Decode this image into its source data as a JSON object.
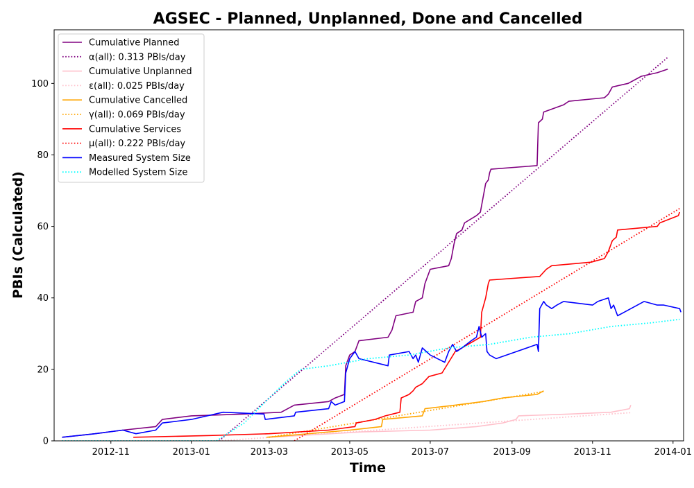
{
  "chart_data": {
    "type": "line",
    "title": "AGSEC - Planned, Unplanned, Done  and Cancelled",
    "xlabel": "Time",
    "ylabel": "PBIs (Calculated)",
    "x_axis": {
      "type": "date",
      "range": [
        "2012-09-19",
        "2014-01-09"
      ],
      "ticks": [
        "2012-11-01",
        "2013-01-01",
        "2013-03-01",
        "2013-05-01",
        "2013-07-01",
        "2013-09-01",
        "2013-11-01",
        "2014-01-01"
      ],
      "tick_labels": [
        "2012-11",
        "2013-01",
        "2013-03",
        "2013-05",
        "2013-07",
        "2013-09",
        "2013-11",
        "2014-01"
      ]
    },
    "y_axis": {
      "range": [
        0,
        115
      ],
      "ticks": [
        0,
        20,
        40,
        60,
        80,
        100
      ],
      "tick_labels": [
        "0",
        "20",
        "40",
        "60",
        "80",
        "100"
      ]
    },
    "grid": false,
    "legend_position": "upper left",
    "series": [
      {
        "name": "Cumulative Planned",
        "color": "#800080",
        "style": "solid",
        "points": [
          [
            "2012-09-25",
            1
          ],
          [
            "2012-10-20",
            2
          ],
          [
            "2012-11-10",
            3
          ],
          [
            "2012-12-05",
            4
          ],
          [
            "2012-12-10",
            6
          ],
          [
            "2013-01-01",
            7
          ],
          [
            "2013-02-10",
            7.5
          ],
          [
            "2013-03-10",
            8
          ],
          [
            "2013-03-20",
            10
          ],
          [
            "2013-04-15",
            11
          ],
          [
            "2013-04-20",
            12
          ],
          [
            "2013-04-27",
            13
          ],
          [
            "2013-04-28",
            21
          ],
          [
            "2013-05-01",
            24
          ],
          [
            "2013-05-05",
            25
          ],
          [
            "2013-05-08",
            28
          ],
          [
            "2013-05-30",
            29
          ],
          [
            "2013-06-02",
            31
          ],
          [
            "2013-06-05",
            35
          ],
          [
            "2013-06-18",
            36
          ],
          [
            "2013-06-20",
            39
          ],
          [
            "2013-06-25",
            40
          ],
          [
            "2013-06-27",
            44
          ],
          [
            "2013-07-01",
            48
          ],
          [
            "2013-07-15",
            49
          ],
          [
            "2013-07-17",
            51
          ],
          [
            "2013-07-19",
            55
          ],
          [
            "2013-07-21",
            58
          ],
          [
            "2013-07-25",
            59
          ],
          [
            "2013-07-27",
            61
          ],
          [
            "2013-08-05",
            63
          ],
          [
            "2013-08-08",
            64
          ],
          [
            "2013-08-12",
            72
          ],
          [
            "2013-08-14",
            73
          ],
          [
            "2013-08-15",
            75
          ],
          [
            "2013-08-16",
            76
          ],
          [
            "2013-09-20",
            77
          ],
          [
            "2013-09-21",
            89
          ],
          [
            "2013-09-24",
            90
          ],
          [
            "2013-09-25",
            92
          ],
          [
            "2013-10-10",
            94
          ],
          [
            "2013-10-14",
            95
          ],
          [
            "2013-11-10",
            96
          ],
          [
            "2013-11-13",
            97
          ],
          [
            "2013-11-16",
            99
          ],
          [
            "2013-11-28",
            100
          ],
          [
            "2013-12-08",
            102
          ],
          [
            "2013-12-20",
            103
          ],
          [
            "2013-12-28",
            104
          ]
        ]
      },
      {
        "name": "α(all): 0.313 PBIs/day",
        "color": "#800080",
        "style": "dotted",
        "points": [
          [
            "2013-01-22",
            0
          ],
          [
            "2013-12-28",
            107.3
          ]
        ]
      },
      {
        "name": "Cumulative Unplanned",
        "color": "#ffc0cb",
        "style": "solid",
        "points": [
          [
            "2013-03-01",
            1
          ],
          [
            "2013-05-10",
            2.5
          ],
          [
            "2013-07-01",
            3
          ],
          [
            "2013-08-05",
            4
          ],
          [
            "2013-08-25",
            5
          ],
          [
            "2013-09-04",
            6
          ],
          [
            "2013-09-06",
            7
          ],
          [
            "2013-10-15",
            7.5
          ],
          [
            "2013-11-15",
            8
          ],
          [
            "2013-11-29",
            9
          ],
          [
            "2013-11-30",
            10
          ]
        ]
      },
      {
        "name": "ε(all): 0.025 PBIs/day",
        "color": "#ffc0cb",
        "style": "dotted",
        "points": [
          [
            "2013-01-22",
            0
          ],
          [
            "2013-11-30",
            7.9
          ]
        ]
      },
      {
        "name": "Cumulative Cancelled",
        "color": "#ffa500",
        "style": "solid",
        "points": [
          [
            "2013-02-27",
            1
          ],
          [
            "2013-03-15",
            1.5
          ],
          [
            "2013-05-01",
            3
          ],
          [
            "2013-05-25",
            4
          ],
          [
            "2013-05-26",
            6
          ],
          [
            "2013-06-25",
            7
          ],
          [
            "2013-06-27",
            9
          ],
          [
            "2013-07-20",
            10
          ],
          [
            "2013-08-10",
            11
          ],
          [
            "2013-08-25",
            12
          ],
          [
            "2013-09-20",
            13
          ],
          [
            "2013-09-25",
            14
          ]
        ]
      },
      {
        "name": "γ(all): 0.069 PBIs/day",
        "color": "#ffa500",
        "style": "dotted",
        "points": [
          [
            "2013-03-01",
            1
          ],
          [
            "2013-09-25",
            13.8
          ]
        ]
      },
      {
        "name": "Cumulative Services",
        "color": "#ff0000",
        "style": "solid",
        "points": [
          [
            "2012-11-18",
            1
          ],
          [
            "2013-01-15",
            1.5
          ],
          [
            "2013-03-01",
            2
          ],
          [
            "2013-04-15",
            3
          ],
          [
            "2013-05-05",
            4
          ],
          [
            "2013-05-06",
            5
          ],
          [
            "2013-05-20",
            6
          ],
          [
            "2013-05-28",
            7
          ],
          [
            "2013-06-08",
            8
          ],
          [
            "2013-06-09",
            12
          ],
          [
            "2013-06-15",
            13
          ],
          [
            "2013-06-18",
            14
          ],
          [
            "2013-06-20",
            15
          ],
          [
            "2013-06-25",
            16
          ],
          [
            "2013-06-30",
            18
          ],
          [
            "2013-07-10",
            19
          ],
          [
            "2013-07-20",
            25
          ],
          [
            "2013-07-25",
            26
          ],
          [
            "2013-08-08",
            29
          ],
          [
            "2013-08-09",
            36
          ],
          [
            "2013-08-12",
            40
          ],
          [
            "2013-08-14",
            44
          ],
          [
            "2013-08-15",
            45
          ],
          [
            "2013-09-22",
            46
          ],
          [
            "2013-09-27",
            48
          ],
          [
            "2013-10-01",
            49
          ],
          [
            "2013-10-31",
            50
          ],
          [
            "2013-11-10",
            51
          ],
          [
            "2013-11-13",
            53
          ],
          [
            "2013-11-16",
            56
          ],
          [
            "2013-11-19",
            57
          ],
          [
            "2013-11-20",
            59
          ],
          [
            "2013-12-20",
            60
          ],
          [
            "2013-12-22",
            61
          ],
          [
            "2014-01-05",
            63
          ],
          [
            "2014-01-06",
            64
          ]
        ]
      },
      {
        "name": "μ(all): 0.222 PBIs/day",
        "color": "#ff0000",
        "style": "dotted",
        "points": [
          [
            "2013-03-20",
            0
          ],
          [
            "2014-01-06",
            65
          ]
        ]
      },
      {
        "name": "Measured System Size",
        "color": "#0000ff",
        "style": "solid",
        "points": [
          [
            "2012-09-25",
            1
          ],
          [
            "2012-10-20",
            2
          ],
          [
            "2012-11-10",
            3
          ],
          [
            "2012-11-20",
            2
          ],
          [
            "2012-12-05",
            3
          ],
          [
            "2012-12-10",
            5
          ],
          [
            "2013-01-01",
            6
          ],
          [
            "2013-01-25",
            8
          ],
          [
            "2013-02-25",
            7.5
          ],
          [
            "2013-02-26",
            6
          ],
          [
            "2013-03-20",
            7
          ],
          [
            "2013-03-21",
            8
          ],
          [
            "2013-04-15",
            9
          ],
          [
            "2013-04-17",
            11
          ],
          [
            "2013-04-20",
            10
          ],
          [
            "2013-04-27",
            11
          ],
          [
            "2013-04-28",
            19
          ],
          [
            "2013-05-01",
            23
          ],
          [
            "2013-05-05",
            25
          ],
          [
            "2013-05-08",
            23
          ],
          [
            "2013-05-30",
            21
          ],
          [
            "2013-05-31",
            24
          ],
          [
            "2013-06-15",
            25
          ],
          [
            "2013-06-18",
            23
          ],
          [
            "2013-06-20",
            24
          ],
          [
            "2013-06-22",
            22
          ],
          [
            "2013-06-25",
            26
          ],
          [
            "2013-07-01",
            24
          ],
          [
            "2013-07-12",
            22
          ],
          [
            "2013-07-15",
            25
          ],
          [
            "2013-07-18",
            27
          ],
          [
            "2013-07-21",
            25
          ],
          [
            "2013-07-25",
            26
          ],
          [
            "2013-08-01",
            28
          ],
          [
            "2013-08-05",
            29
          ],
          [
            "2013-08-07",
            32
          ],
          [
            "2013-08-09",
            29
          ],
          [
            "2013-08-12",
            30
          ],
          [
            "2013-08-13",
            25
          ],
          [
            "2013-08-15",
            24
          ],
          [
            "2013-08-20",
            23
          ],
          [
            "2013-09-20",
            27
          ],
          [
            "2013-09-21",
            25
          ],
          [
            "2013-09-22",
            37
          ],
          [
            "2013-09-25",
            39
          ],
          [
            "2013-09-27",
            38
          ],
          [
            "2013-10-01",
            37
          ],
          [
            "2013-10-05",
            38
          ],
          [
            "2013-10-10",
            39
          ],
          [
            "2013-11-01",
            38
          ],
          [
            "2013-11-05",
            39
          ],
          [
            "2013-11-13",
            40
          ],
          [
            "2013-11-15",
            37
          ],
          [
            "2013-11-17",
            38
          ],
          [
            "2013-11-20",
            35
          ],
          [
            "2013-11-25",
            36
          ],
          [
            "2013-12-10",
            39
          ],
          [
            "2013-12-20",
            38
          ],
          [
            "2013-12-25",
            38
          ],
          [
            "2014-01-06",
            37
          ],
          [
            "2014-01-07",
            36
          ]
        ]
      },
      {
        "name": "Modelled System Size",
        "color": "#00ffff",
        "style": "dotted",
        "points": [
          [
            "2012-09-25",
            0
          ],
          [
            "2013-01-20",
            0
          ],
          [
            "2013-02-10",
            5
          ],
          [
            "2013-03-01",
            12
          ],
          [
            "2013-03-15",
            17
          ],
          [
            "2013-03-25",
            20
          ],
          [
            "2013-04-15",
            21
          ],
          [
            "2013-05-15",
            23
          ],
          [
            "2013-06-15",
            24
          ],
          [
            "2013-07-15",
            26
          ],
          [
            "2013-08-15",
            27
          ],
          [
            "2013-09-15",
            29
          ],
          [
            "2013-10-15",
            30
          ],
          [
            "2013-11-15",
            32
          ],
          [
            "2013-12-15",
            33
          ],
          [
            "2014-01-06",
            34
          ]
        ]
      }
    ]
  }
}
